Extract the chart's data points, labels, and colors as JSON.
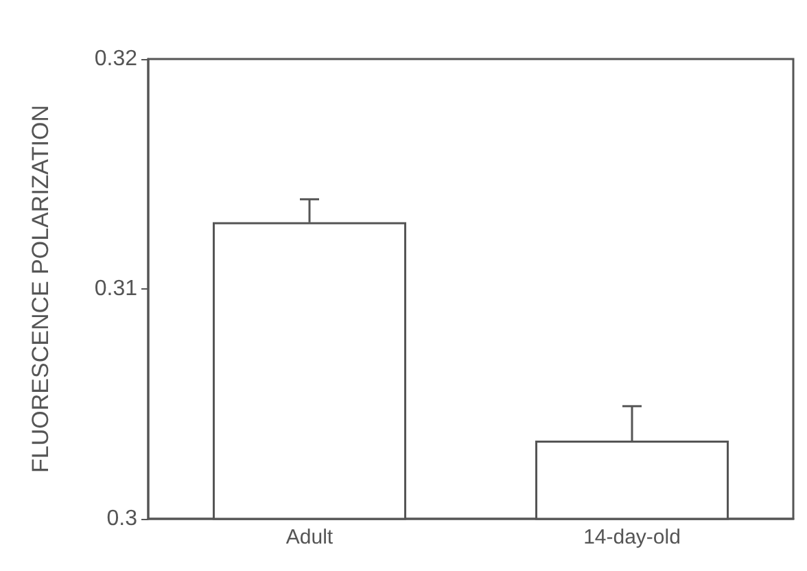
{
  "chart_data": {
    "type": "bar",
    "ylabel": "FLUORESCENCE POLARIZATION",
    "categories": [
      "Adult",
      "14-day-old"
    ],
    "values": [
      0.3129,
      0.3034
    ],
    "color": "#ffffff",
    "errors": [
      [
        0.3129,
        0.3139
      ],
      [
        0.3034,
        0.3049
      ]
    ],
    "ylim": [
      0.3,
      0.32
    ],
    "yticks": [
      0.3,
      0.31,
      0.32
    ],
    "grid": false
  }
}
